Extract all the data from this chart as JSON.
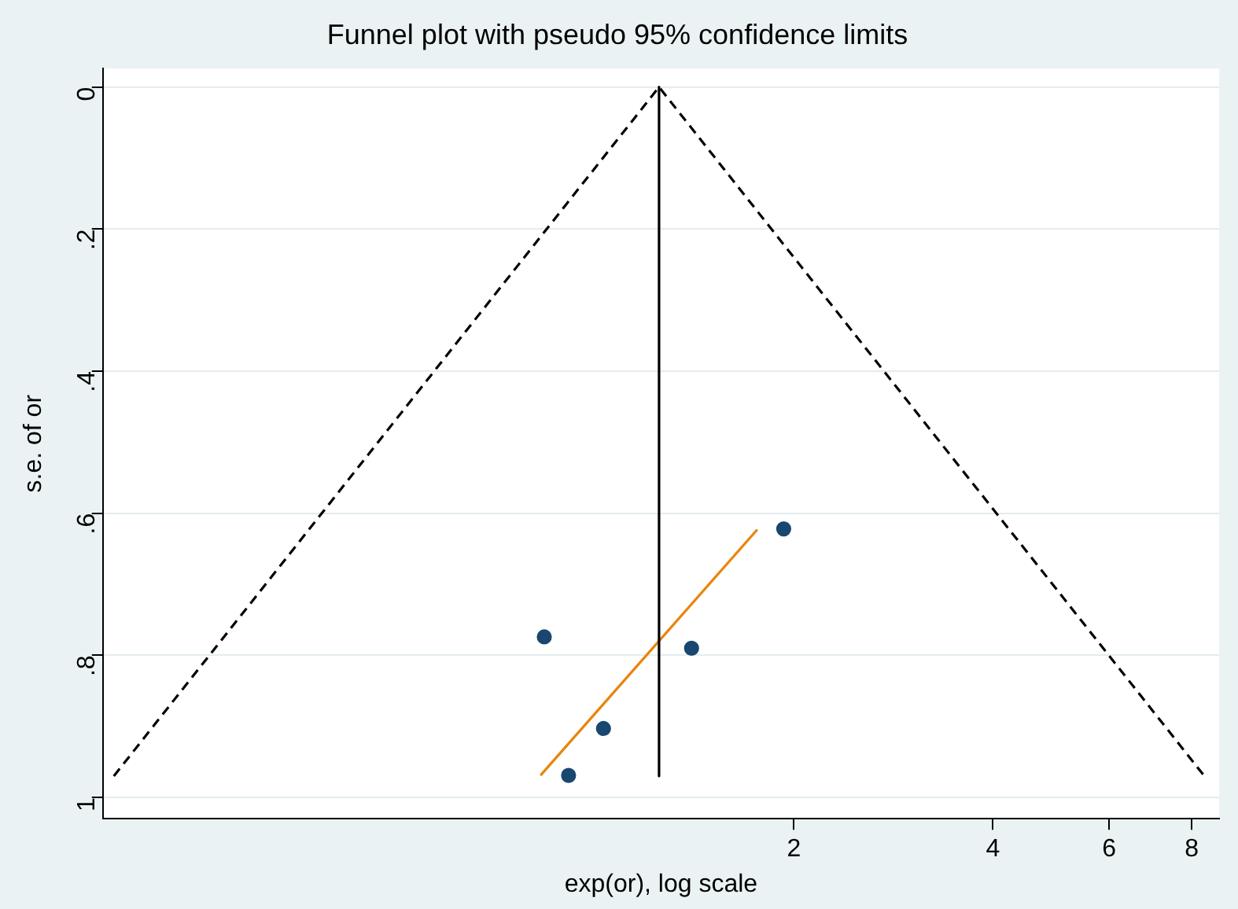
{
  "chart_data": {
    "type": "scatter",
    "title": "Funnel plot with pseudo 95% confidence limits",
    "xlabel": "exp(or), log scale",
    "ylabel": "s.e. of or",
    "log": "x",
    "grid": "y",
    "legend": false,
    "xlim": [
      0.18,
      8.8
    ],
    "xticks": [
      2,
      4,
      6,
      8
    ],
    "ylim": [
      1.03,
      -0.026
    ],
    "yticks": [
      {
        "value": 0,
        "label": "0"
      },
      {
        "value": 0.2,
        "label": ".2"
      },
      {
        "value": 0.4,
        "label": ".4"
      },
      {
        "value": 0.6,
        "label": ".6"
      },
      {
        "value": 0.8,
        "label": ".8"
      },
      {
        "value": 1,
        "label": "1"
      }
    ],
    "series": [
      {
        "type": "line",
        "color": "#000000",
        "line_style": "dashed",
        "marker": "none",
        "x": [
          0.187,
          1.25,
          8.36
        ],
        "values": [
          0.97,
          0,
          0.97
        ]
      },
      {
        "type": "line",
        "color": "#000000",
        "line_style": "solid",
        "marker": "none",
        "x": [
          1.25,
          1.25
        ],
        "values": [
          0,
          0.97
        ]
      },
      {
        "type": "line",
        "color": "#e8850c",
        "line_style": "solid",
        "marker": "none",
        "x": [
          0.827,
          1.76
        ],
        "values": [
          0.969,
          0.623
        ]
      },
      {
        "type": "scatter",
        "color": "#1a476f",
        "marker": "circle",
        "x": [
          0.838,
          1.93,
          1.4,
          1.03,
          0.912
        ],
        "values": [
          0.774,
          0.622,
          0.79,
          0.903,
          0.969
        ]
      }
    ]
  }
}
